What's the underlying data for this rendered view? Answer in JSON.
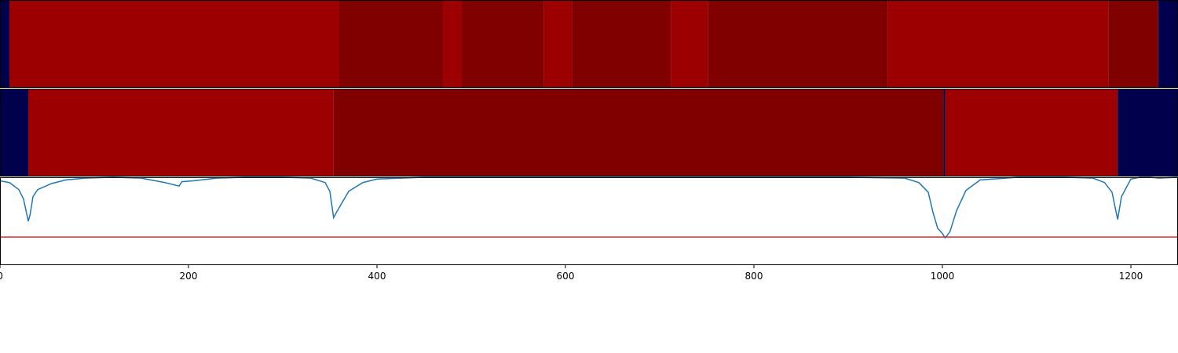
{
  "chart_data": [
    {
      "type": "heatmap",
      "panel": "top",
      "x_range": [
        0,
        1250
      ],
      "segments": [
        {
          "start": 0,
          "end": 10,
          "level": "low"
        },
        {
          "start": 10,
          "end": 360,
          "level": "high"
        },
        {
          "start": 360,
          "end": 470,
          "level": "mid"
        },
        {
          "start": 470,
          "end": 490,
          "level": "high"
        },
        {
          "start": 490,
          "end": 577,
          "level": "mid"
        },
        {
          "start": 577,
          "end": 607,
          "level": "high"
        },
        {
          "start": 607,
          "end": 712,
          "level": "mid"
        },
        {
          "start": 712,
          "end": 751,
          "level": "high"
        },
        {
          "start": 751,
          "end": 942,
          "level": "mid"
        },
        {
          "start": 942,
          "end": 1176,
          "level": "high"
        },
        {
          "start": 1176,
          "end": 1229,
          "level": "mid"
        },
        {
          "start": 1229,
          "end": 1250,
          "level": "low"
        }
      ]
    },
    {
      "type": "heatmap",
      "panel": "middle",
      "x_range": [
        0,
        1250
      ],
      "segments": [
        {
          "start": 0,
          "end": 30,
          "level": "low"
        },
        {
          "start": 30,
          "end": 354,
          "level": "high"
        },
        {
          "start": 354,
          "end": 1001,
          "level": "mid"
        },
        {
          "start": 1001,
          "end": 1003,
          "level": "low"
        },
        {
          "start": 1003,
          "end": 1186,
          "level": "high"
        },
        {
          "start": 1186,
          "end": 1250,
          "level": "low"
        }
      ]
    },
    {
      "type": "line",
      "panel": "bottom",
      "xlim": [
        0,
        1250
      ],
      "ylim": [
        0,
        1
      ],
      "threshold": 0.32,
      "x": [
        0,
        10,
        20,
        25,
        30,
        32,
        35,
        40,
        55,
        70,
        90,
        120,
        150,
        175,
        190,
        193,
        205,
        230,
        260,
        300,
        330,
        345,
        350,
        354,
        358,
        370,
        385,
        400,
        450,
        540,
        700,
        900,
        960,
        975,
        985,
        990,
        995,
        1000,
        1003,
        1008,
        1015,
        1025,
        1040,
        1080,
        1130,
        1160,
        1172,
        1180,
        1184,
        1186,
        1190,
        1200,
        1210,
        1220,
        1230,
        1250
      ],
      "y": [
        0.96,
        0.94,
        0.86,
        0.75,
        0.5,
        0.58,
        0.78,
        0.86,
        0.93,
        0.97,
        0.99,
        1.0,
        0.99,
        0.94,
        0.9,
        0.95,
        0.96,
        0.99,
        1.0,
        1.0,
        0.99,
        0.94,
        0.84,
        0.54,
        0.62,
        0.84,
        0.94,
        0.98,
        1.0,
        1.0,
        1.0,
        1.0,
        0.99,
        0.94,
        0.83,
        0.6,
        0.42,
        0.36,
        0.31,
        0.38,
        0.62,
        0.85,
        0.97,
        1.0,
        1.0,
        0.99,
        0.94,
        0.83,
        0.62,
        0.52,
        0.78,
        0.98,
        1.0,
        1.0,
        0.99,
        1.0
      ],
      "xticks": [
        0,
        200,
        400,
        600,
        800,
        1000,
        1200
      ]
    }
  ],
  "colors": {
    "low": "#00004c",
    "mid": "#800000",
    "high": "#9c0000",
    "line": "#1f77b4",
    "threshold": "#d62728",
    "axis": "#000000"
  }
}
